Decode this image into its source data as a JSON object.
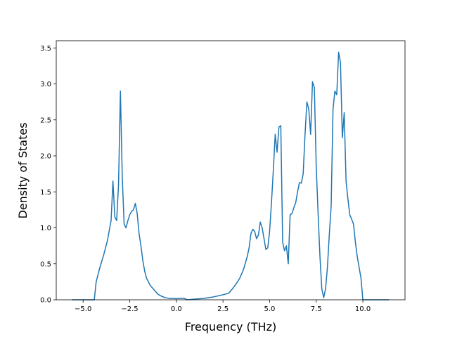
{
  "chart_data": {
    "type": "line",
    "title": "",
    "xlabel": "Frequency (THz)",
    "ylabel": "Density of States",
    "xlim": [
      -6.44,
      12.26
    ],
    "ylim": [
      0,
      3.6
    ],
    "xticks": [
      -5.0,
      -2.5,
      0.0,
      2.5,
      5.0,
      7.5,
      10.0
    ],
    "xtick_labels": [
      "−5.0",
      "−2.5",
      "0.0",
      "2.5",
      "5.0",
      "7.5",
      "10.0"
    ],
    "yticks": [
      0.0,
      0.5,
      1.0,
      1.5,
      2.0,
      2.5,
      3.0,
      3.5
    ],
    "ytick_labels": [
      "0.0",
      "0.5",
      "1.0",
      "1.5",
      "2.0",
      "2.5",
      "3.0",
      "3.5"
    ],
    "grid": false,
    "line_color": "#1f77b4",
    "series": [
      {
        "x": [
          -5.6,
          -4.4,
          -4.3,
          -4.1,
          -3.9,
          -3.7,
          -3.5,
          -3.4,
          -3.3,
          -3.2,
          -3.1,
          -3.0,
          -2.9,
          -2.8,
          -2.7,
          -2.6,
          -2.5,
          -2.4,
          -2.3,
          -2.2,
          -2.1,
          -2.0,
          -1.9,
          -1.8,
          -1.7,
          -1.6,
          -1.5,
          -1.4,
          -1.2,
          -1.0,
          -0.8,
          -0.6,
          -0.4,
          -0.2,
          0.0,
          0.2,
          0.4,
          0.5,
          0.6,
          1.0,
          1.5,
          2.0,
          2.5,
          2.8,
          3.0,
          3.2,
          3.4,
          3.6,
          3.8,
          3.9,
          4.0,
          4.1,
          4.2,
          4.3,
          4.4,
          4.5,
          4.6,
          4.7,
          4.8,
          4.9,
          5.0,
          5.1,
          5.2,
          5.3,
          5.4,
          5.5,
          5.6,
          5.7,
          5.8,
          5.9,
          6.0,
          6.1,
          6.2,
          6.3,
          6.4,
          6.5,
          6.6,
          6.7,
          6.8,
          6.9,
          7.0,
          7.1,
          7.2,
          7.3,
          7.4,
          7.5,
          7.6,
          7.7,
          7.8,
          7.9,
          8.0,
          8.1,
          8.2,
          8.3,
          8.4,
          8.5,
          8.6,
          8.7,
          8.8,
          8.9,
          9.0,
          9.1,
          9.2,
          9.3,
          9.4,
          9.5,
          9.6,
          9.7,
          9.8,
          9.9,
          10.0,
          10.2,
          10.5,
          11.0,
          11.4
        ],
        "y": [
          0.0,
          0.0,
          0.25,
          0.45,
          0.62,
          0.82,
          1.1,
          1.65,
          1.15,
          1.1,
          1.6,
          2.9,
          1.7,
          1.05,
          1.0,
          1.1,
          1.18,
          1.23,
          1.25,
          1.34,
          1.2,
          0.92,
          0.75,
          0.55,
          0.4,
          0.3,
          0.25,
          0.2,
          0.14,
          0.08,
          0.05,
          0.03,
          0.02,
          0.02,
          0.015,
          0.02,
          0.02,
          0.01,
          0.0,
          0.01,
          0.02,
          0.04,
          0.07,
          0.09,
          0.15,
          0.22,
          0.3,
          0.42,
          0.6,
          0.72,
          0.92,
          0.98,
          0.95,
          0.85,
          0.9,
          1.08,
          1.0,
          0.85,
          0.7,
          0.72,
          0.95,
          1.35,
          1.8,
          2.3,
          2.05,
          2.4,
          2.42,
          0.8,
          0.68,
          0.75,
          0.5,
          1.18,
          1.2,
          1.28,
          1.35,
          1.5,
          1.63,
          1.62,
          1.75,
          2.3,
          2.75,
          2.65,
          2.3,
          3.03,
          2.95,
          1.85,
          1.2,
          0.6,
          0.15,
          0.03,
          0.15,
          0.45,
          0.9,
          1.3,
          2.65,
          2.9,
          2.85,
          3.44,
          3.3,
          2.25,
          2.6,
          1.65,
          1.4,
          1.18,
          1.12,
          1.05,
          0.8,
          0.6,
          0.45,
          0.3,
          0.0,
          0.0,
          0.0,
          0.0,
          0.0
        ]
      }
    ]
  }
}
